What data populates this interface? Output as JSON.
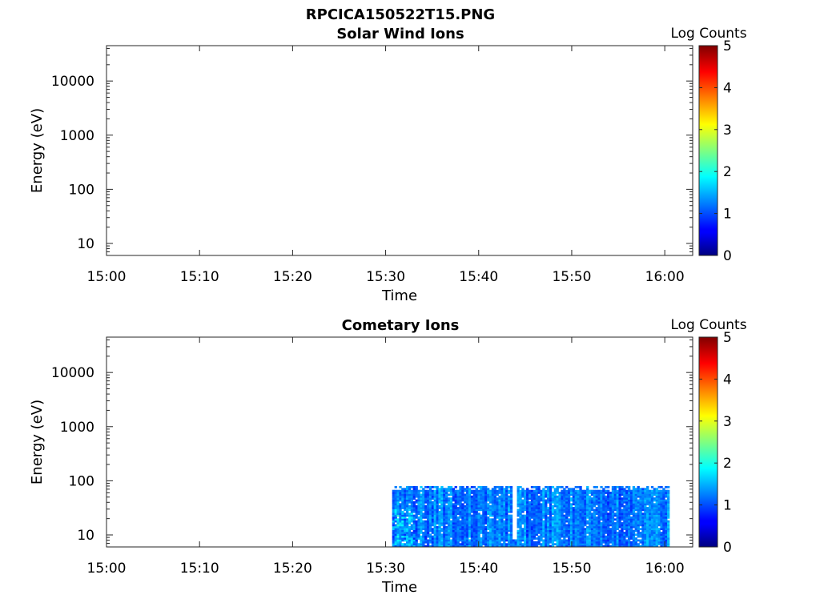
{
  "figure": {
    "title": "RPCICA150522T15.PNG"
  },
  "chart_data": [
    {
      "type": "heatmap",
      "title": "Solar Wind Ions",
      "xlabel": "Time",
      "ylabel": "Energy (eV)",
      "x_ticks": [
        "15:00",
        "15:10",
        "15:20",
        "15:30",
        "15:40",
        "15:50",
        "16:00"
      ],
      "x_range_minutes": [
        0,
        63
      ],
      "y_scale": "log",
      "y_range": [
        6,
        45000
      ],
      "y_ticks": [
        10,
        100,
        1000,
        10000
      ],
      "y_tick_labels": [
        "10",
        "100",
        "1000",
        "10000"
      ],
      "colorbar": {
        "label": "Log Counts",
        "range": [
          0,
          5
        ],
        "ticks": [
          "0",
          "1",
          "2",
          "3",
          "4",
          "5"
        ],
        "colormap": "jet"
      },
      "data_blocks": []
    },
    {
      "type": "heatmap",
      "title": "Cometary Ions",
      "xlabel": "Time",
      "ylabel": "Energy (eV)",
      "x_ticks": [
        "15:00",
        "15:10",
        "15:20",
        "15:30",
        "15:40",
        "15:50",
        "16:00"
      ],
      "x_range_minutes": [
        0,
        63
      ],
      "y_scale": "log",
      "y_range": [
        6,
        45000
      ],
      "y_ticks": [
        10,
        100,
        1000,
        10000
      ],
      "y_tick_labels": [
        "10",
        "100",
        "1000",
        "10000"
      ],
      "colorbar": {
        "label": "Log Counts",
        "range": [
          0,
          5
        ],
        "ticks": [
          "0",
          "1",
          "2",
          "3",
          "4",
          "5"
        ],
        "colormap": "jet"
      },
      "data_blocks": [
        {
          "t_start_min": 30.7,
          "t_end_min": 60.5,
          "energy_min_eV": 6,
          "energy_max_eV": 80,
          "typical_log_counts": [
            0.3,
            1.5
          ],
          "gap_min": 43.8
        }
      ]
    }
  ]
}
